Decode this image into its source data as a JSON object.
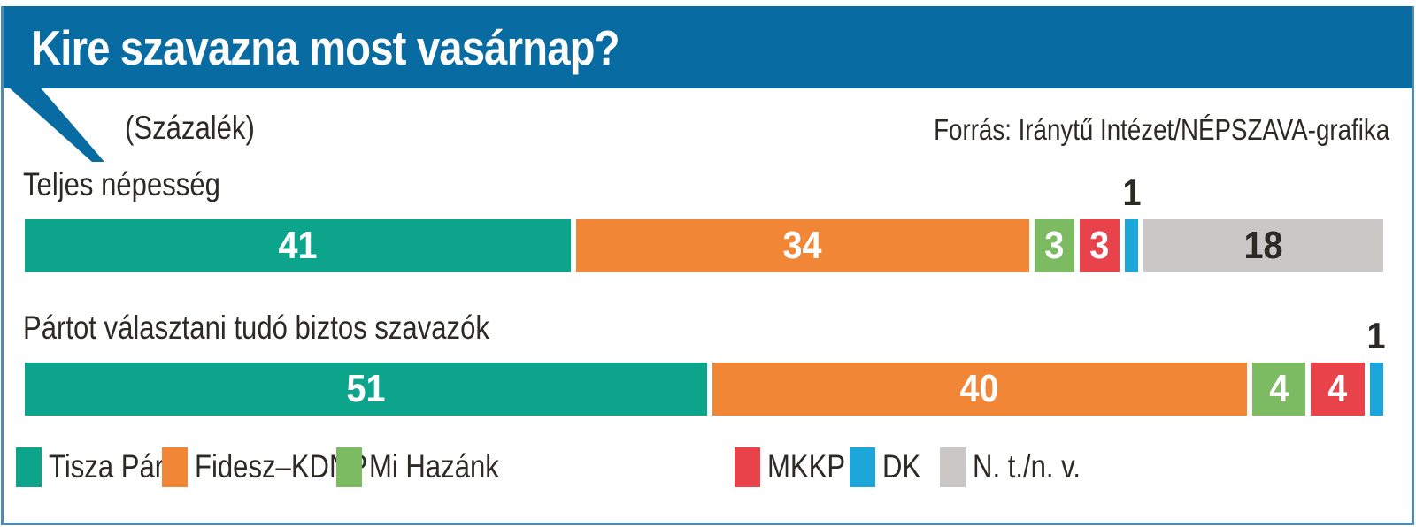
{
  "title": "Kire szavazna most vasárnap?",
  "subtitle": "(Százalék)",
  "source": "Forrás: Iránytű Intézet/NÉPSZAVA-grafika",
  "colors": {
    "header_band": "#086ba2",
    "frame_border": "#4d89b1",
    "text_dark": "#2d2a26",
    "value_text_light": "#ffffff"
  },
  "chart_data": {
    "type": "bar",
    "orientation": "horizontal",
    "stacked": true,
    "title": "Kire szavazna most vasárnap?",
    "unit": "Százalék",
    "xlim": [
      0,
      100
    ],
    "grid": false,
    "legend_position": "bottom",
    "categories": [
      "Teljes népesség",
      "Pártot választani tudó biztos szavazók"
    ],
    "series": [
      {
        "name": "Tisza Párt",
        "color": "#0da48c",
        "label_style": "inside-light",
        "values": [
          41,
          51
        ]
      },
      {
        "name": "Fidesz–KDNP",
        "color": "#f08636",
        "label_style": "inside-light",
        "values": [
          34,
          40
        ]
      },
      {
        "name": "Mi Hazánk",
        "color": "#7cbb61",
        "label_style": "inside-light",
        "values": [
          3,
          4
        ]
      },
      {
        "name": "MKKP",
        "color": "#e8434a",
        "label_style": "inside-light",
        "values": [
          3,
          4
        ]
      },
      {
        "name": "DK",
        "color": "#1ca6da",
        "label_style": "above-dark",
        "values": [
          1,
          1
        ]
      },
      {
        "name": "N. t./n. v.",
        "color": "#c9c8c6",
        "label_style": "inside-dark",
        "values": [
          18,
          null
        ]
      }
    ]
  }
}
